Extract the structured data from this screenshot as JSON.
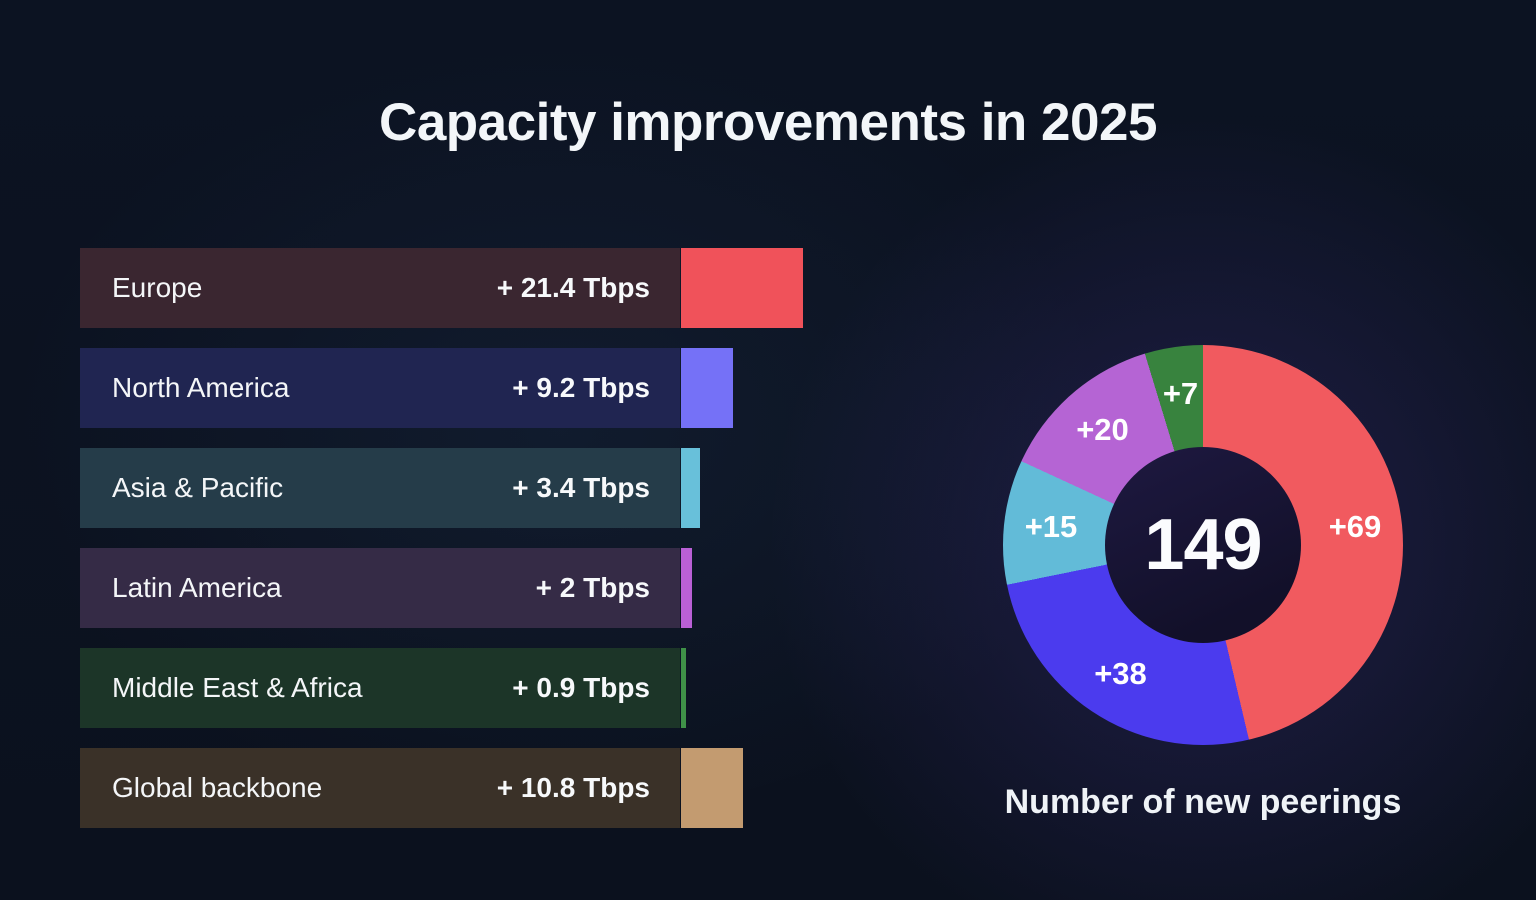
{
  "title": "Capacity improvements in 2025",
  "chart_data": [
    {
      "type": "bar",
      "title": "Capacity improvements in 2025",
      "orientation": "horizontal",
      "value_unit": "Tbps",
      "categories": [
        "Europe",
        "North America",
        "Asia & Pacific",
        "Latin America",
        "Middle East & Africa",
        "Global backbone"
      ],
      "values": [
        21.4,
        9.2,
        3.4,
        2,
        0.9,
        10.8
      ],
      "value_labels": [
        "+ 21.4 Tbps",
        "+ 9.2 Tbps",
        "+ 3.4 Tbps",
        "+ 2 Tbps",
        "+ 0.9 Tbps",
        "+ 10.8 Tbps"
      ],
      "bar_colors": [
        "#f0525a",
        "#7571f7",
        "#68c0da",
        "#ba60d6",
        "#3f9148",
        "#c39b70"
      ],
      "row_bg_colors": [
        "#3a2630",
        "#202551",
        "#253c49",
        "#352b46",
        "#1c3528",
        "#3a3128"
      ]
    },
    {
      "type": "donut",
      "caption": "Number of new peerings",
      "center_total": "149",
      "direction": "clockwise",
      "start_angle_deg": 0,
      "segments": [
        {
          "label": "+69",
          "value": 69,
          "color": "#f15a5f"
        },
        {
          "label": "+38",
          "value": 38,
          "color": "#4b3bee"
        },
        {
          "label": "+15",
          "value": 15,
          "color": "#62bbd8"
        },
        {
          "label": "+20",
          "value": 20,
          "color": "#b564d4"
        },
        {
          "label": "+7",
          "value": 7,
          "color": "#38833e"
        }
      ]
    }
  ],
  "accent_colors": {
    "background": "#0c1322",
    "donut_glow": "#503aa5",
    "text": "#f3f6f9"
  }
}
